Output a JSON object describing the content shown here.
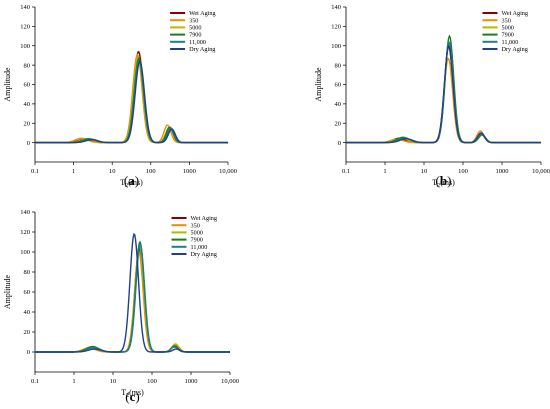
{
  "chart_data": [
    {
      "type": "line",
      "panel_label": "(a)",
      "xlabel": "T2(ms)",
      "ylabel": "Amplitude",
      "x_scale": "log",
      "xlim": [
        0.1,
        10000
      ],
      "ylim": [
        -20,
        140
      ],
      "x_tick_labels": [
        "0.1",
        "1",
        "10",
        "100",
        "1000",
        "10,000"
      ],
      "y_tick_labels": [
        "0",
        "20",
        "40",
        "60",
        "80",
        "100",
        "120",
        "140"
      ],
      "legend_location": "upper right",
      "series": [
        {
          "name": "Wet Aging",
          "color": "#8b0000",
          "peaks": [
            [
              1.9,
              3.5,
              0.16
            ],
            [
              48,
              94,
              0.12
            ],
            [
              320,
              15,
              0.09
            ]
          ]
        },
        {
          "name": "350",
          "color": "#f08c00",
          "peaks": [
            [
              1.6,
              4.5,
              0.16
            ],
            [
              45,
              91,
              0.12
            ],
            [
              270,
              18,
              0.09
            ]
          ]
        },
        {
          "name": "5000",
          "color": "#b5b800",
          "peaks": [
            [
              2.2,
              4.0,
              0.16
            ],
            [
              47,
              89,
              0.12
            ],
            [
              300,
              16,
              0.09
            ]
          ]
        },
        {
          "name": "7900",
          "color": "#1a7f1a",
          "peaks": [
            [
              2.5,
              4.0,
              0.16
            ],
            [
              49,
              87,
              0.12
            ],
            [
              310,
              16,
              0.09
            ]
          ]
        },
        {
          "name": "11,000",
          "color": "#1b7f8f",
          "peaks": [
            [
              2.8,
              3.5,
              0.16
            ],
            [
              50,
              85,
              0.12
            ],
            [
              330,
              15,
              0.09
            ]
          ]
        },
        {
          "name": "Dry Aging",
          "color": "#1f3f8f",
          "peaks": [
            [
              3.0,
              3.0,
              0.16
            ],
            [
              52,
              84,
              0.12
            ],
            [
              350,
              14,
              0.09
            ]
          ]
        }
      ]
    },
    {
      "type": "line",
      "panel_label": "(b)",
      "xlabel": "T2(ms)",
      "ylabel": "Amplitude",
      "x_scale": "log",
      "xlim": [
        0.1,
        10000
      ],
      "ylim": [
        -20,
        140
      ],
      "x_tick_labels": [
        "0.1",
        "1",
        "10",
        "100",
        "1000",
        "10,000"
      ],
      "y_tick_labels": [
        "0",
        "20",
        "40",
        "60",
        "80",
        "100",
        "120",
        "140"
      ],
      "legend_location": "upper right",
      "series": [
        {
          "name": "Wet Aging",
          "color": "#8b0000",
          "peaks": [
            [
              2.3,
              4.5,
              0.16
            ],
            [
              43,
              99,
              0.11
            ],
            [
              290,
              9,
              0.09
            ]
          ]
        },
        {
          "name": "350",
          "color": "#f08c00",
          "peaks": [
            [
              2.0,
              3.5,
              0.16
            ],
            [
              42,
              87,
              0.11
            ],
            [
              280,
              12,
              0.09
            ]
          ]
        },
        {
          "name": "5000",
          "color": "#b5b800",
          "peaks": [
            [
              2.6,
              4.5,
              0.16
            ],
            [
              44,
              103,
              0.11
            ],
            [
              300,
              9,
              0.09
            ]
          ]
        },
        {
          "name": "7900",
          "color": "#1a7f1a",
          "peaks": [
            [
              2.9,
              5.5,
              0.16
            ],
            [
              45,
              110,
              0.11
            ],
            [
              310,
              8,
              0.09
            ]
          ]
        },
        {
          "name": "11,000",
          "color": "#1b7f8f",
          "peaks": [
            [
              3.2,
              4.5,
              0.16
            ],
            [
              44,
              104,
              0.11
            ],
            [
              300,
              9,
              0.09
            ]
          ]
        },
        {
          "name": "Dry Aging",
          "color": "#1f3f8f",
          "peaks": [
            [
              3.5,
              4.0,
              0.16
            ],
            [
              43,
              100,
              0.11
            ],
            [
              290,
              10,
              0.09
            ]
          ]
        }
      ]
    },
    {
      "type": "line",
      "panel_label": "(c)",
      "xlabel": "T2(ms)",
      "ylabel": "Amplitude",
      "x_scale": "log",
      "xlim": [
        0.1,
        10000
      ],
      "ylim": [
        -20,
        140
      ],
      "x_tick_labels": [
        "0.1",
        "1",
        "10",
        "100",
        "1000",
        "10,000"
      ],
      "y_tick_labels": [
        "0",
        "20",
        "40",
        "60",
        "80",
        "100",
        "120",
        "140"
      ],
      "legend_location": "upper right",
      "series": [
        {
          "name": "Wet Aging",
          "color": "#8b0000",
          "peaks": [
            [
              2.6,
              4.5,
              0.16
            ],
            [
              47,
              104,
              0.11
            ],
            [
              390,
              6,
              0.09
            ]
          ]
        },
        {
          "name": "350",
          "color": "#f08c00",
          "peaks": [
            [
              2.4,
              4.0,
              0.16
            ],
            [
              46,
              100,
              0.11
            ],
            [
              400,
              8,
              0.09
            ]
          ]
        },
        {
          "name": "5000",
          "color": "#b5b800",
          "peaks": [
            [
              2.8,
              5.0,
              0.16
            ],
            [
              48,
              106,
              0.11
            ],
            [
              410,
              7,
              0.09
            ]
          ]
        },
        {
          "name": "7900",
          "color": "#1a7f1a",
          "peaks": [
            [
              3.0,
              5.5,
              0.16
            ],
            [
              49,
              110,
              0.11
            ],
            [
              380,
              6,
              0.09
            ]
          ]
        },
        {
          "name": "11,000",
          "color": "#1b7f8f",
          "peaks": [
            [
              3.2,
              4.5,
              0.16
            ],
            [
              50,
              108,
              0.11
            ],
            [
              370,
              5,
              0.09
            ]
          ]
        },
        {
          "name": "Dry Aging",
          "color": "#1f3f8f",
          "peaks": [
            [
              3.4,
              3.0,
              0.16
            ],
            [
              35,
              118,
              0.11
            ],
            [
              420,
              3,
              0.09
            ]
          ]
        }
      ]
    }
  ]
}
